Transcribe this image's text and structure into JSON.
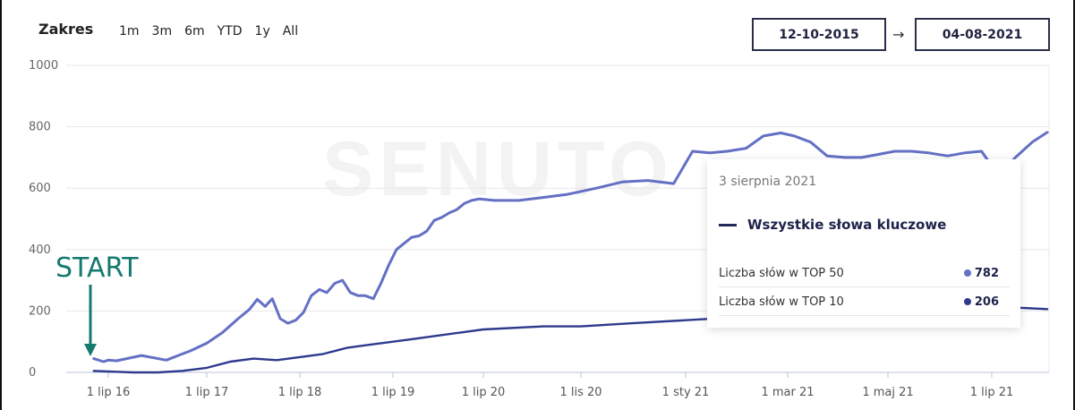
{
  "range": {
    "title": "Zakres",
    "options": [
      "1m",
      "3m",
      "6m",
      "YTD",
      "1y",
      "All"
    ]
  },
  "date_from": "12-10-2015",
  "date_to": "04-08-2021",
  "date_arrow": "→",
  "watermark": "SENUTO",
  "annotation": {
    "label": "START"
  },
  "tooltip": {
    "date": "3 sierpnia 2021",
    "series_label": "Wszystkie słowa kluczowe",
    "rows": [
      {
        "label": "Liczba słów w TOP 50",
        "value": "782",
        "color": "#6470c4"
      },
      {
        "label": "Liczba słów w TOP 10",
        "value": "206",
        "color": "#2e3a8c"
      }
    ]
  },
  "chart_data": {
    "type": "line",
    "title": "",
    "xlabel": "",
    "ylabel": "",
    "ylim": [
      0,
      1000
    ],
    "yticks": [
      0,
      200,
      400,
      600,
      800,
      1000
    ],
    "x_tick_labels": [
      "1 lip 16",
      "1 lip 17",
      "1 lip 18",
      "1 lip 19",
      "1 lip 20",
      "1 lis 20",
      "1 sty 21",
      "1 mar 21",
      "1 maj 21",
      "1 lip 21"
    ],
    "x_tick_dates": [
      "2016-07-01",
      "2017-07-01",
      "2018-07-01",
      "2019-07-01",
      "2020-07-01",
      "2020-11-01",
      "2021-01-01",
      "2021-03-01",
      "2021-05-01",
      "2021-07-01"
    ],
    "grid": true,
    "series": [
      {
        "name": "Liczba słów w TOP 50",
        "color": "#6470c4",
        "x": [
          "2016-04-01",
          "2016-06-01",
          "2016-07-01",
          "2016-08-01",
          "2016-11-01",
          "2017-02-01",
          "2017-04-01",
          "2017-05-01",
          "2017-07-01",
          "2017-09-01",
          "2017-11-01",
          "2017-12-15",
          "2018-01-15",
          "2018-02-15",
          "2018-03-15",
          "2018-04-15",
          "2018-05-15",
          "2018-06-15",
          "2018-07-15",
          "2018-08-15",
          "2018-09-15",
          "2018-10-15",
          "2018-11-15",
          "2018-12-15",
          "2019-01-15",
          "2019-02-15",
          "2019-03-15",
          "2019-04-15",
          "2019-05-15",
          "2019-06-15",
          "2019-07-15",
          "2019-08-15",
          "2019-09-15",
          "2019-10-15",
          "2019-11-15",
          "2019-12-15",
          "2020-01-15",
          "2020-02-15",
          "2020-03-15",
          "2020-04-15",
          "2020-05-15",
          "2020-06-15",
          "2020-07-15",
          "2020-08-15",
          "2020-09-15",
          "2020-10-15",
          "2020-11-10",
          "2020-11-25",
          "2020-12-10",
          "2020-12-25",
          "2021-01-05",
          "2021-01-15",
          "2021-01-25",
          "2021-02-05",
          "2021-02-15",
          "2021-02-25",
          "2021-03-05",
          "2021-03-15",
          "2021-03-25",
          "2021-04-05",
          "2021-04-15",
          "2021-04-25",
          "2021-05-05",
          "2021-05-15",
          "2021-05-25",
          "2021-06-05",
          "2021-06-15",
          "2021-06-25",
          "2021-07-05",
          "2021-07-15",
          "2021-07-25",
          "2021-08-03"
        ],
        "values": [
          45,
          35,
          40,
          38,
          55,
          40,
          60,
          70,
          95,
          130,
          175,
          205,
          238,
          215,
          240,
          175,
          160,
          170,
          195,
          250,
          270,
          260,
          290,
          300,
          260,
          250,
          250,
          240,
          290,
          350,
          400,
          420,
          440,
          445,
          460,
          495,
          505,
          520,
          530,
          550,
          560,
          565,
          560,
          560,
          570,
          580,
          600,
          620,
          625,
          615,
          720,
          715,
          720,
          730,
          770,
          780,
          770,
          750,
          705,
          700,
          700,
          710,
          720,
          720,
          715,
          705,
          715,
          720,
          640,
          700,
          750,
          782
        ]
      },
      {
        "name": "Liczba słów w TOP 10",
        "color": "#2e3a8c",
        "x": [
          "2016-04-01",
          "2016-07-01",
          "2016-10-01",
          "2017-01-01",
          "2017-04-01",
          "2017-07-01",
          "2017-10-01",
          "2018-01-01",
          "2018-04-01",
          "2018-07-01",
          "2018-10-01",
          "2019-01-01",
          "2019-04-01",
          "2019-07-01",
          "2019-10-01",
          "2020-01-01",
          "2020-04-01",
          "2020-07-01",
          "2020-09-15",
          "2020-11-01",
          "2020-12-01",
          "2021-01-01",
          "2021-02-01",
          "2021-03-01",
          "2021-04-01",
          "2021-05-01",
          "2021-06-01",
          "2021-07-01",
          "2021-08-03"
        ],
        "values": [
          5,
          3,
          0,
          0,
          5,
          15,
          35,
          45,
          40,
          50,
          60,
          80,
          90,
          100,
          110,
          120,
          130,
          140,
          150,
          150,
          160,
          170,
          180,
          185,
          190,
          195,
          205,
          215,
          206
        ]
      }
    ]
  }
}
